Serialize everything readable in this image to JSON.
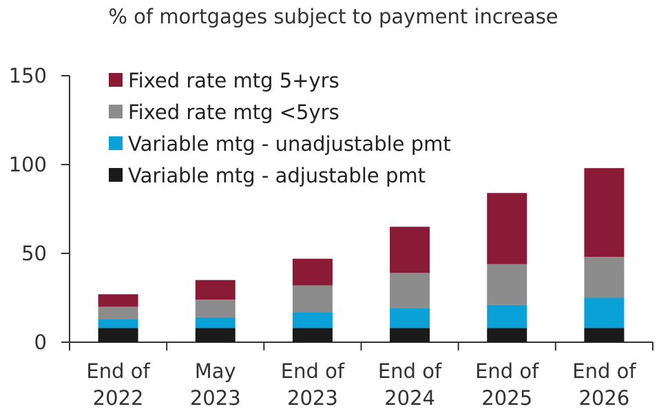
{
  "chart_data": {
    "type": "bar",
    "stacked": true,
    "title": "% of mortgages subject to payment increase",
    "xlabel": "",
    "ylabel": "",
    "ylim": [
      0,
      150
    ],
    "yticks": [
      0,
      50,
      100,
      150
    ],
    "grid": false,
    "legend_position": "top-left",
    "categories": [
      [
        "End of",
        "2022"
      ],
      [
        "May",
        "2023"
      ],
      [
        "End of",
        "2023"
      ],
      [
        "End of",
        "2024"
      ],
      [
        "End of",
        "2025"
      ],
      [
        "End of",
        "2026"
      ]
    ],
    "series": [
      {
        "name": "Variable mtg - adjustable pmt",
        "color": "#1a1a1a",
        "values": [
          8,
          8,
          8,
          8,
          8,
          8
        ]
      },
      {
        "name": "Variable mtg - unadjustable pmt",
        "color": "#0aa0d8",
        "values": [
          5,
          6,
          9,
          11,
          13,
          17
        ]
      },
      {
        "name": "Fixed rate mtg <5yrs",
        "color": "#8c8c8c",
        "values": [
          7,
          10,
          15,
          20,
          23,
          23
        ]
      },
      {
        "name": "Fixed rate mtg 5+yrs",
        "color": "#8a1a35",
        "values": [
          7,
          11,
          15,
          26,
          40,
          50
        ]
      }
    ],
    "legend_order": [
      3,
      2,
      1,
      0
    ]
  }
}
